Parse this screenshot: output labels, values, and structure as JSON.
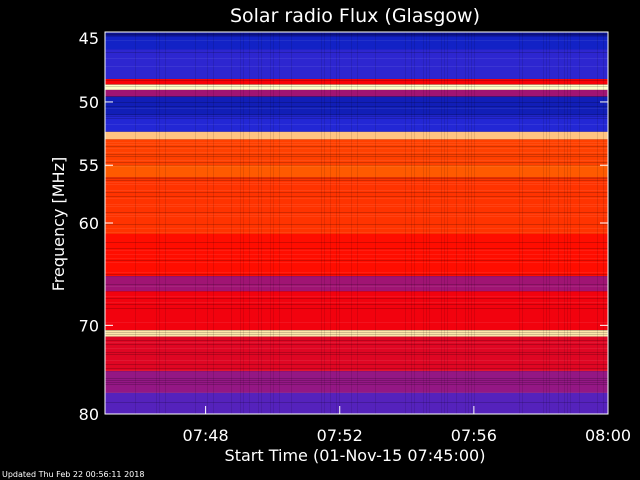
{
  "chart_data": {
    "type": "heatmap",
    "title": "Solar radio Flux (Glasgow)",
    "xlabel": "Start Time (01-Nov-15 07:45:00)",
    "ylabel": "Frequency [MHz]",
    "x_ticks": [
      "07:48",
      "07:52",
      "07:56",
      "08:00"
    ],
    "x_tick_minutes": [
      3,
      7,
      11,
      15
    ],
    "xlim_minutes": [
      0,
      15
    ],
    "y_ticks": [
      45,
      50,
      55,
      60,
      70,
      80
    ],
    "ylim": [
      45,
      80
    ],
    "y_scale": "log",
    "colormap": "rainbow",
    "bands": [
      {
        "f0": 45.0,
        "f1": 45.3,
        "level": 0.05
      },
      {
        "f0": 45.3,
        "f1": 46.2,
        "level": 0.12
      },
      {
        "f0": 46.2,
        "f1": 48.3,
        "level": 0.2
      },
      {
        "f0": 48.3,
        "f1": 48.7,
        "level": 0.7
      },
      {
        "f0": 48.7,
        "f1": 49.1,
        "level": 1.0
      },
      {
        "f0": 49.1,
        "f1": 49.6,
        "level": 0.45
      },
      {
        "f0": 49.6,
        "f1": 51.0,
        "level": 0.1
      },
      {
        "f0": 51.0,
        "f1": 52.3,
        "level": 0.18
      },
      {
        "f0": 52.3,
        "f1": 52.9,
        "level": 0.95
      },
      {
        "f0": 52.9,
        "f1": 55.0,
        "level": 0.82
      },
      {
        "f0": 55.0,
        "f1": 56.0,
        "level": 0.86
      },
      {
        "f0": 56.0,
        "f1": 61.0,
        "level": 0.8
      },
      {
        "f0": 61.0,
        "f1": 65.0,
        "level": 0.74
      },
      {
        "f0": 65.0,
        "f1": 66.5,
        "level": 0.45
      },
      {
        "f0": 66.5,
        "f1": 70.5,
        "level": 0.68
      },
      {
        "f0": 70.5,
        "f1": 71.2,
        "level": 0.98
      },
      {
        "f0": 71.2,
        "f1": 75.0,
        "level": 0.62
      },
      {
        "f0": 75.0,
        "f1": 77.5,
        "level": 0.42
      },
      {
        "f0": 77.5,
        "f1": 80.0,
        "level": 0.28
      }
    ]
  },
  "footer": {
    "updated": "Updated Thu Feb 22 00:56:11 2018"
  }
}
